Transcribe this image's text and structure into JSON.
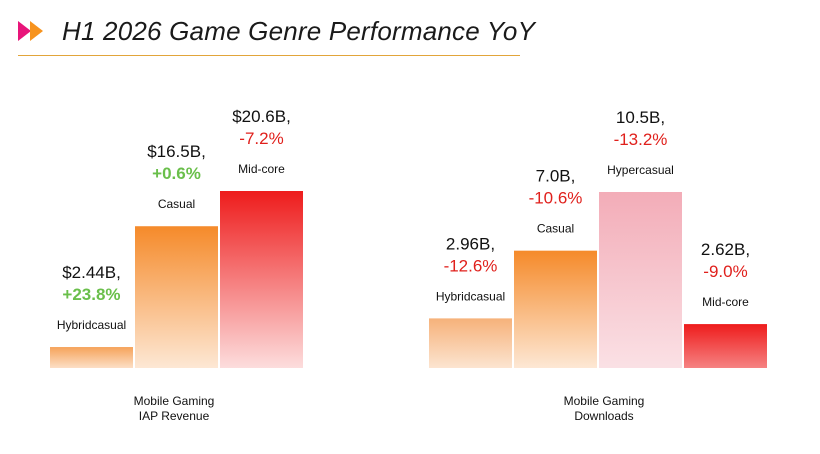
{
  "header": {
    "title": "H1 2026 Game Genre Performance YoY",
    "logo_icon": "double-play-arrow-icon",
    "accent_colors": [
      "#e8157a",
      "#f7931e"
    ],
    "rule_color": "#e2a53a"
  },
  "chart_data": [
    {
      "type": "bar",
      "caption": [
        "Mobile Gaming",
        "IAP Revenue"
      ],
      "categories": [
        "Hybridcasual",
        "Casual",
        "Mid-core"
      ],
      "values": [
        2.44,
        16.5,
        20.6
      ],
      "value_labels": [
        "$2.44B,",
        "$16.5B,",
        "$20.6B,"
      ],
      "yoy_labels": [
        "+23.8%",
        "+0.6%",
        "-7.2%"
      ],
      "category_labels": [
        "Hybridcasual",
        "Casual",
        "Mid-core"
      ],
      "unit": "$B",
      "ylim": [
        0,
        20.6
      ],
      "bar_colors": [
        "#f6a35a",
        "#f58a2a",
        "#ee1c1c"
      ]
    },
    {
      "type": "bar",
      "caption": [
        "Mobile Gaming",
        "Downloads"
      ],
      "categories": [
        "Hybridcasual",
        "Casual",
        "Hypercasual",
        "Mid-core"
      ],
      "values": [
        2.96,
        7.0,
        10.5,
        2.62
      ],
      "value_labels": [
        "2.96B,",
        "7.0B,",
        "10.5B,",
        "2.62B,"
      ],
      "yoy_labels": [
        "-12.6%",
        "-10.6%",
        "-13.2%",
        "-9.0%"
      ],
      "category_labels": [
        "Hybridcasual",
        "Casual",
        "Hypercasual",
        "Mid-core"
      ],
      "unit": "B",
      "ylim": [
        0,
        10.5
      ],
      "bar_colors": [
        "#f6b27a",
        "#f58a2a",
        "#f2a8b4",
        "#ee1c1c"
      ]
    }
  ]
}
